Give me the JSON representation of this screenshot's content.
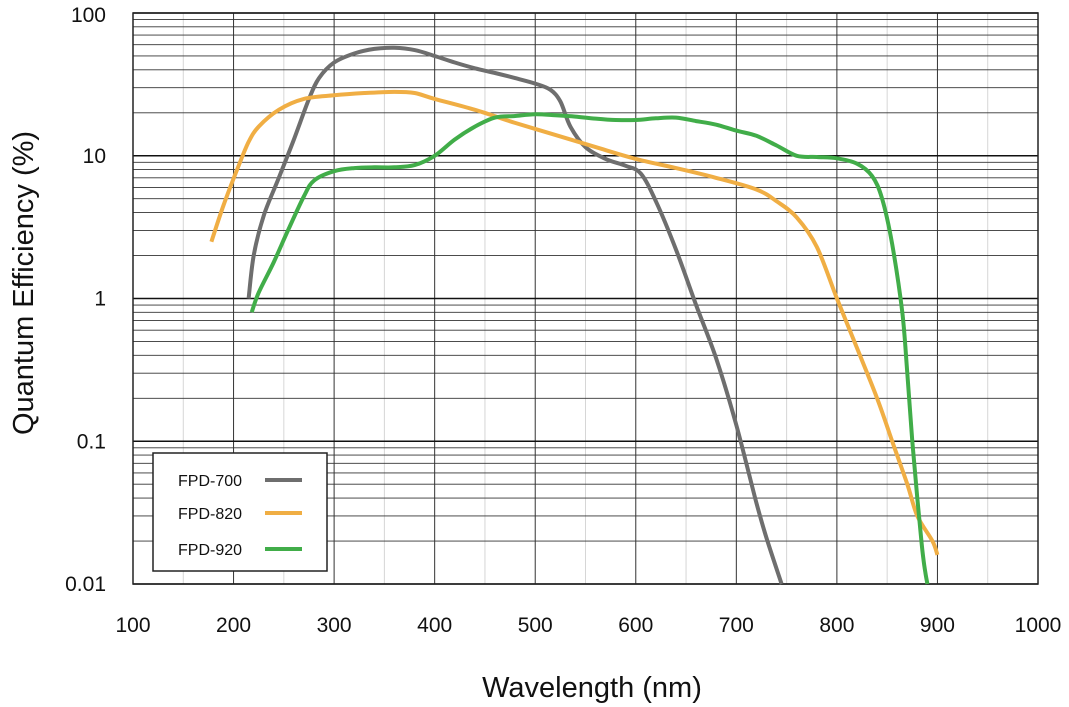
{
  "chart_data": {
    "type": "line",
    "title": "",
    "xlabel": "Wavelength (nm)",
    "ylabel": "Quantum Efficiency (%)",
    "xscale": "linear",
    "yscale": "log",
    "xlim": [
      100,
      1000
    ],
    "ylim": [
      0.01,
      100
    ],
    "grid": true,
    "legend_position": "bottom-left",
    "xticks": [
      100,
      200,
      300,
      400,
      500,
      600,
      700,
      800,
      900,
      1000
    ],
    "xtick_labels": [
      "100",
      "200",
      "300",
      "400",
      "500",
      "600",
      "700",
      "800",
      "900",
      "1000"
    ],
    "yticks": [
      0.01,
      0.1,
      1,
      10,
      100
    ],
    "ytick_labels": [
      "0.01",
      "0.1",
      "1",
      "10",
      "100"
    ],
    "series": [
      {
        "name": "FPD-700",
        "color": "#6e6e6e",
        "x": [
          215,
          220,
          230,
          245,
          260,
          275,
          285,
          300,
          320,
          340,
          360,
          380,
          400,
          420,
          440,
          460,
          480,
          500,
          515,
          525,
          535,
          550,
          570,
          590,
          605,
          620,
          640,
          660,
          680,
          700,
          720,
          730,
          745
        ],
        "y": [
          1.0,
          2.0,
          3.8,
          7.0,
          13,
          25,
          35,
          45,
          52,
          56,
          57,
          55,
          50,
          45,
          41,
          38,
          35,
          32,
          29,
          24,
          16,
          11.5,
          9.5,
          8.5,
          7.5,
          4.8,
          2.2,
          0.9,
          0.38,
          0.13,
          0.037,
          0.021,
          0.01
        ]
      },
      {
        "name": "FPD-820",
        "color": "#f0ae44",
        "x": [
          178,
          190,
          205,
          215,
          225,
          245,
          270,
          300,
          330,
          360,
          380,
          400,
          440,
          480,
          520,
          560,
          600,
          640,
          680,
          720,
          740,
          760,
          780,
          800,
          820,
          840,
          855,
          870,
          880,
          895,
          900
        ],
        "y": [
          2.5,
          4.5,
          8.5,
          12.5,
          16,
          21,
          25,
          26.5,
          27.5,
          28,
          27.5,
          25,
          21,
          17,
          14,
          11.5,
          9.5,
          8.2,
          7.0,
          5.8,
          4.8,
          3.7,
          2.3,
          1.0,
          0.45,
          0.2,
          0.1,
          0.05,
          0.03,
          0.02,
          0.016
        ]
      },
      {
        "name": "FPD-920",
        "color": "#41ad49",
        "x": [
          218,
          225,
          240,
          255,
          270,
          280,
          300,
          320,
          340,
          360,
          380,
          400,
          420,
          440,
          460,
          480,
          500,
          520,
          540,
          560,
          580,
          600,
          620,
          640,
          660,
          680,
          700,
          720,
          740,
          760,
          780,
          800,
          820,
          835,
          845,
          855,
          865,
          870,
          875,
          880,
          884,
          886,
          888,
          890
        ],
        "y": [
          0.8,
          1.1,
          1.8,
          3.1,
          5.2,
          6.7,
          7.8,
          8.2,
          8.3,
          8.3,
          8.6,
          10,
          13,
          16,
          18.5,
          19,
          19.5,
          19.2,
          18.8,
          18.2,
          17.8,
          17.8,
          18.3,
          18.5,
          17.5,
          16.5,
          15,
          13.8,
          11.8,
          10,
          9.8,
          9.6,
          8.8,
          7.2,
          5.0,
          2.4,
          0.8,
          0.3,
          0.1,
          0.04,
          0.02,
          0.015,
          0.012,
          0.01
        ]
      }
    ]
  }
}
